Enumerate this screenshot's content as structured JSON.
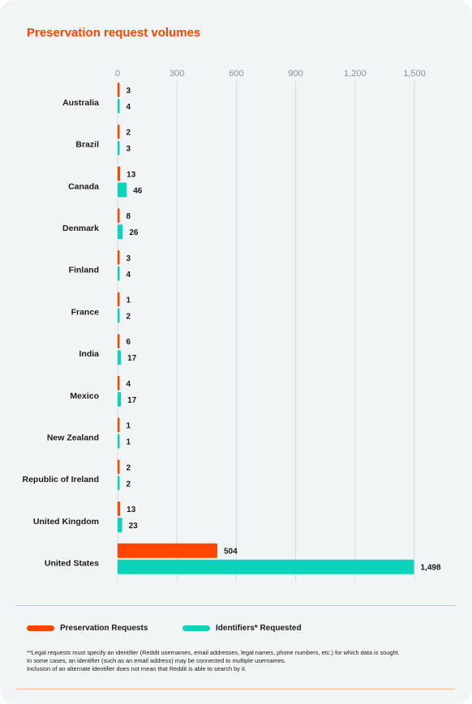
{
  "title": "Preservation request volumes",
  "chart_data": {
    "type": "bar",
    "orientation": "horizontal",
    "title": "Preservation request volumes",
    "xlabel": "",
    "ylabel": "",
    "xlim": [
      0,
      1500
    ],
    "x_ticks": [
      0,
      300,
      600,
      900,
      1200,
      1500
    ],
    "x_tick_labels": [
      "0",
      "300",
      "600",
      "900",
      "1,200",
      "1,500"
    ],
    "grid": true,
    "legend_position": "bottom",
    "categories": [
      "Australia",
      "Brazil",
      "Canada",
      "Denmark",
      "Finland",
      "France",
      "India",
      "Mexico",
      "New Zealand",
      "Republic of Ireland",
      "United Kingdom",
      "United States"
    ],
    "series": [
      {
        "name": "Preservation Requests",
        "color": "#ff4500",
        "values": [
          3,
          2,
          13,
          8,
          3,
          1,
          6,
          4,
          1,
          2,
          13,
          504
        ],
        "value_labels": [
          "3",
          "2",
          "13",
          "8",
          "3",
          "1",
          "6",
          "4",
          "1",
          "2",
          "13",
          "504"
        ]
      },
      {
        "name": "Identifiers* Requested",
        "color": "#0dd3bb",
        "values": [
          4,
          3,
          46,
          26,
          4,
          2,
          17,
          17,
          1,
          2,
          23,
          1498
        ],
        "value_labels": [
          "4",
          "3",
          "46",
          "26",
          "4",
          "2",
          "17",
          "17",
          "1",
          "2",
          "23",
          "1,498"
        ]
      }
    ]
  },
  "legend": {
    "items": [
      {
        "label": "Preservation Requests",
        "color": "#ff4500"
      },
      {
        "label": "Identifiers* Requested",
        "color": "#0dd3bb"
      }
    ]
  },
  "footnote": {
    "lines": [
      "**Legal requests must specify an identifier (Reddit usernames, email addresses, legal names, phone numbers, etc.) for which data is sought.",
      "In some cases, an identifier (such as an email address) may be connected to multiple usernames.",
      "Inclusion of an alternate identifier does not mean that Reddit is able to search by it."
    ]
  }
}
